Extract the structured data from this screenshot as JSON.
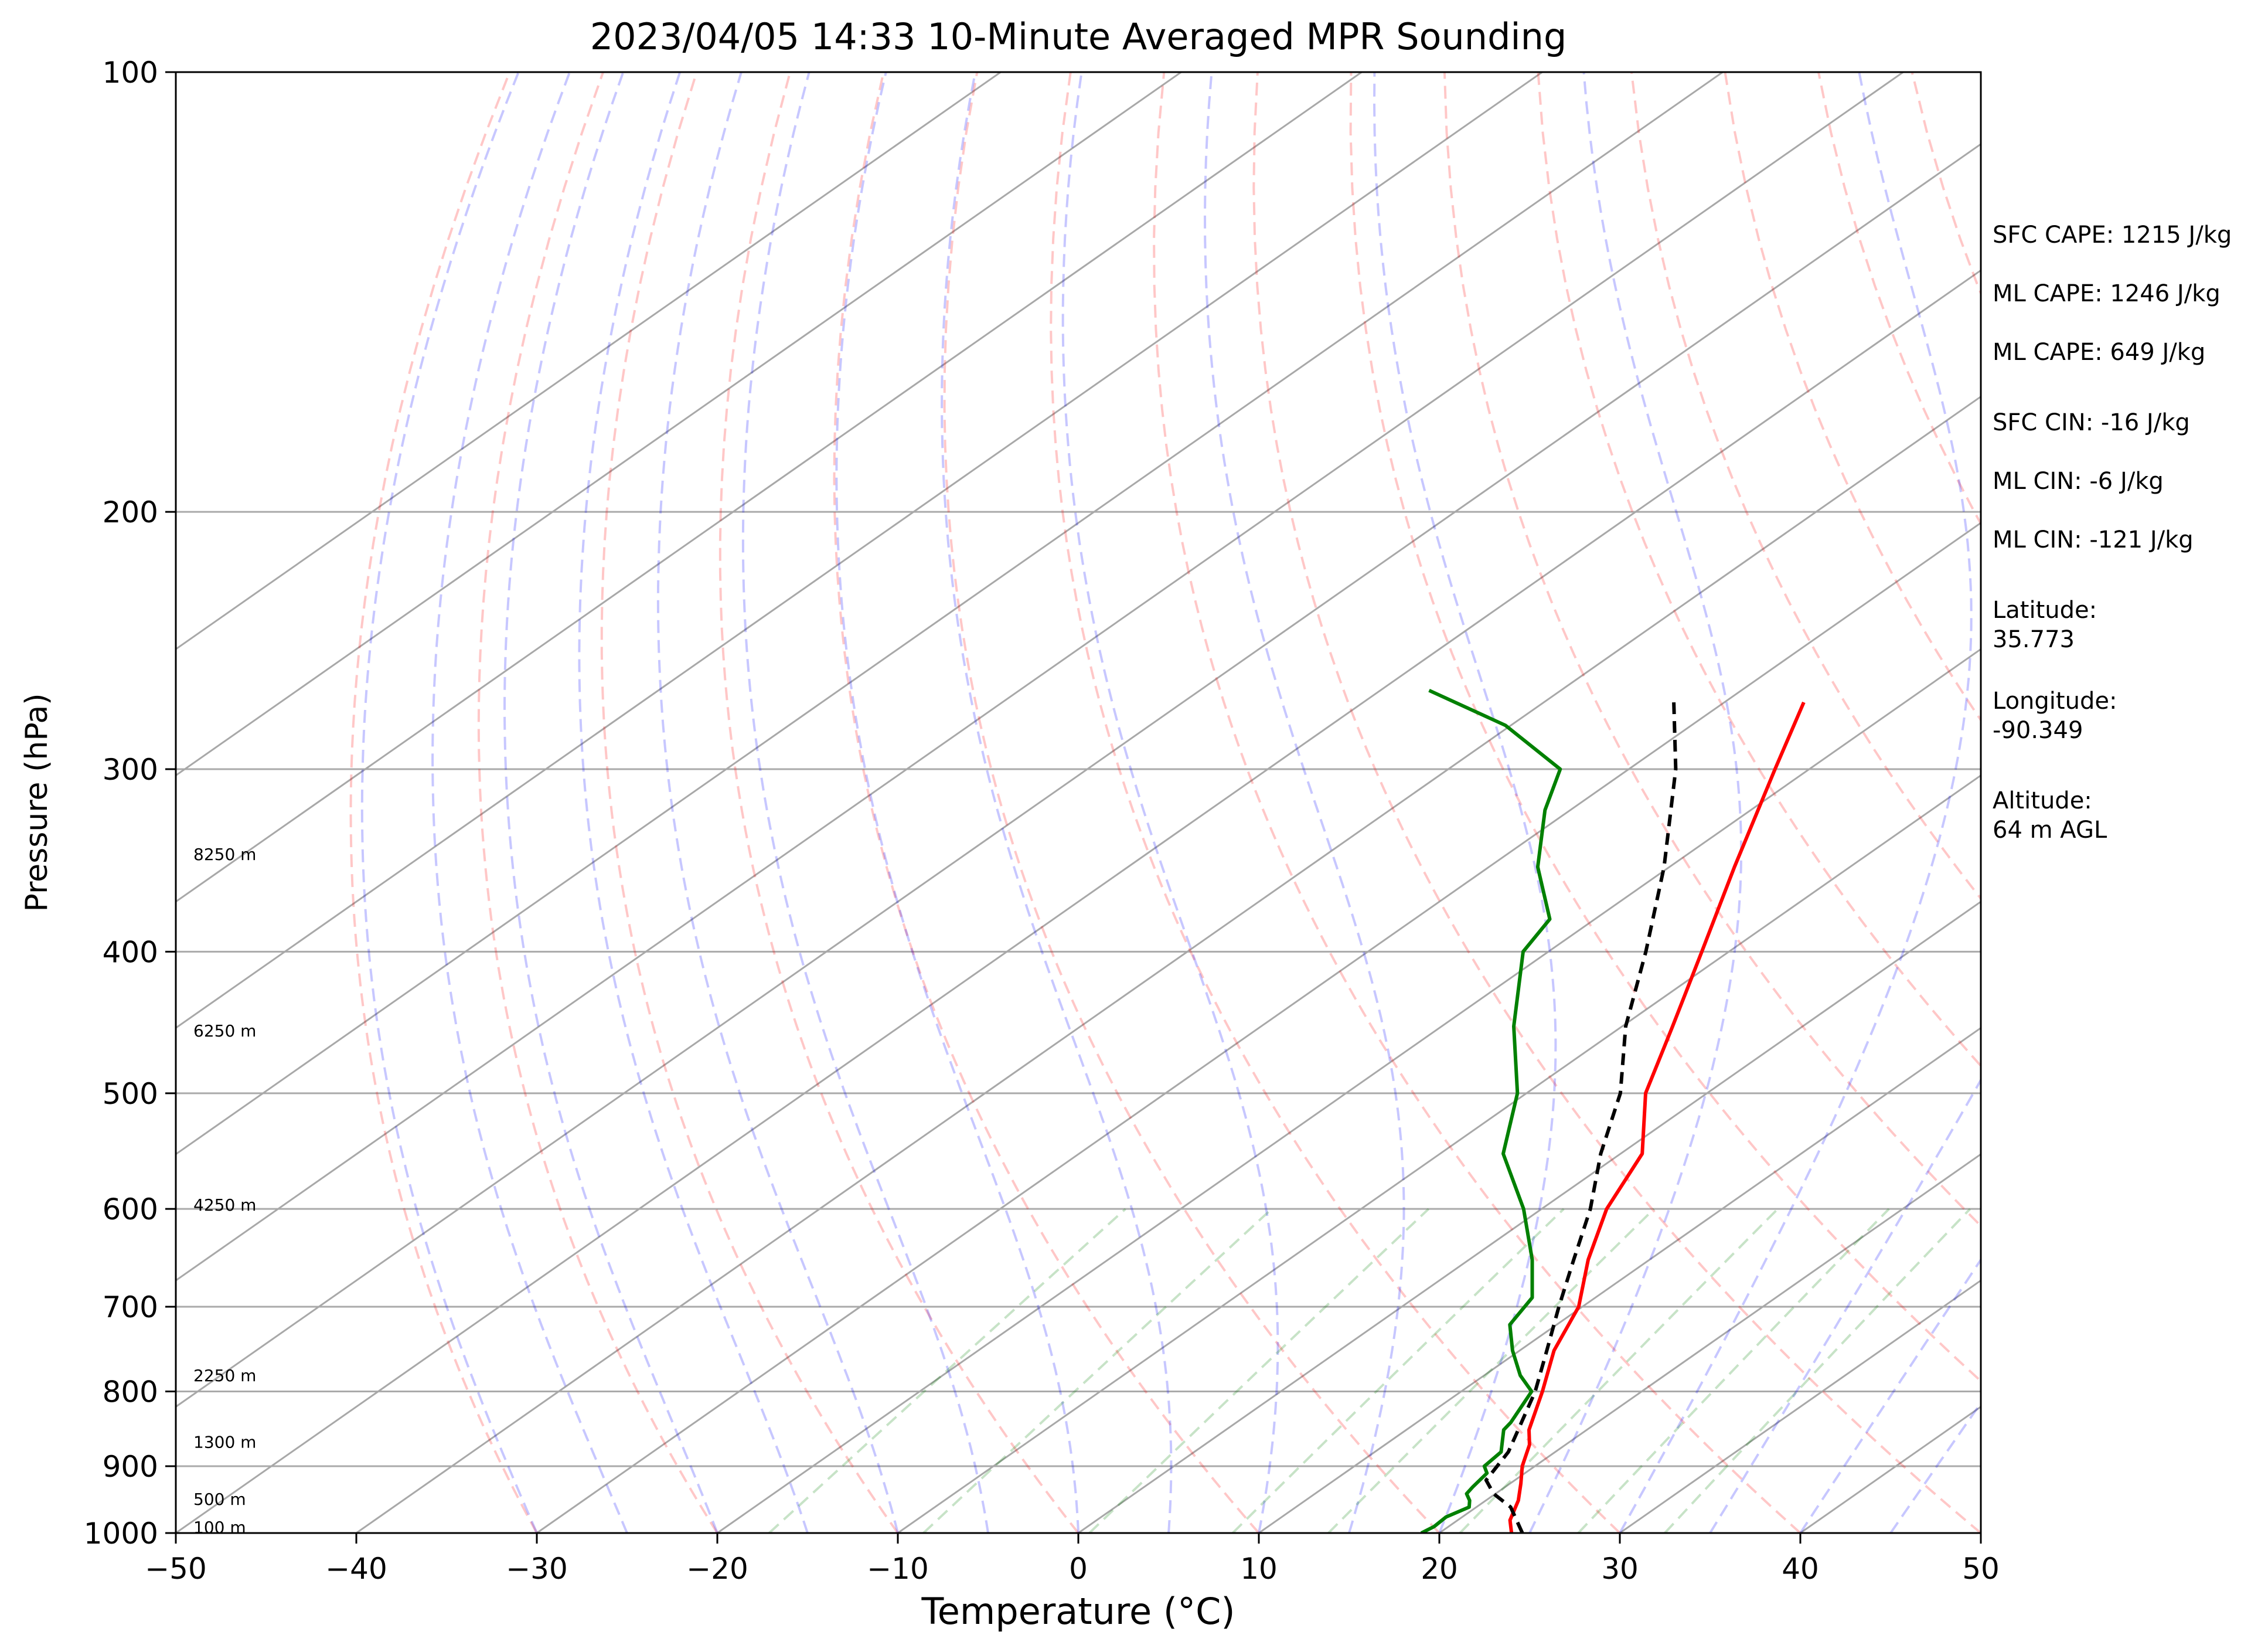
{
  "chart_data": {
    "type": "line",
    "title": "2023/04/05 14:33 10-Minute Averaged MPR Sounding",
    "xlabel": "Temperature (°C)",
    "ylabel": "Pressure (hPa)",
    "xlim": [
      -50,
      50
    ],
    "ylim": [
      1000,
      100
    ],
    "y_scale": "log",
    "skew": true,
    "grid": true,
    "x_ticks": [
      "−50",
      "−40",
      "−30",
      "−20",
      "−10",
      "0",
      "10",
      "20",
      "30",
      "40",
      "50"
    ],
    "y_ticks": [
      "100",
      "200",
      "300",
      "400",
      "500",
      "600",
      "700",
      "800",
      "900",
      "1000"
    ],
    "height_labels": [
      {
        "label": "8250 m",
        "p": 343
      },
      {
        "label": "6250 m",
        "p": 453
      },
      {
        "label": "4250 m",
        "p": 596
      },
      {
        "label": "2250 m",
        "p": 780
      },
      {
        "label": "1300 m",
        "p": 866
      },
      {
        "label": "500 m",
        "p": 948
      },
      {
        "label": "100 m",
        "p": 991
      }
    ],
    "annotations": [
      "SFC CAPE: 1215 J/kg",
      "ML CAPE: 1246 J/kg",
      "ML CAPE: 649 J/kg",
      "SFC CIN: -16 J/kg",
      "ML CIN: -6 J/kg",
      "ML CIN: -121 J/kg",
      "Latitude:\n35.773",
      "Longitude:\n-90.349",
      "Altitude:\n64 m AGL"
    ],
    "series": [
      {
        "role": "temperature",
        "color": "#ff0000",
        "points": [
          [
            1000,
            24.0
          ],
          [
            980,
            22.9
          ],
          [
            950,
            21.8
          ],
          [
            925,
            20.6
          ],
          [
            900,
            19.3
          ],
          [
            870,
            18.0
          ],
          [
            850,
            16.8
          ],
          [
            800,
            14.5
          ],
          [
            750,
            11.9
          ],
          [
            700,
            9.8
          ],
          [
            650,
            6.6
          ],
          [
            600,
            3.6
          ],
          [
            550,
            1.2
          ],
          [
            500,
            -3.4
          ],
          [
            450,
            -7.2
          ],
          [
            400,
            -11.5
          ],
          [
            350,
            -16.4
          ],
          [
            300,
            -21.9
          ],
          [
            270,
            -25.6
          ]
        ]
      },
      {
        "role": "dewpoint",
        "color": "#008000",
        "points": [
          [
            1000,
            19.0
          ],
          [
            990,
            19.2
          ],
          [
            975,
            19.1
          ],
          [
            960,
            19.6
          ],
          [
            950,
            19.1
          ],
          [
            940,
            18.4
          ],
          [
            930,
            18.2
          ],
          [
            910,
            17.9
          ],
          [
            900,
            17.2
          ],
          [
            880,
            17.0
          ],
          [
            850,
            15.4
          ],
          [
            840,
            15.2
          ],
          [
            800,
            13.9
          ],
          [
            780,
            12.0
          ],
          [
            750,
            9.6
          ],
          [
            720,
            7.4
          ],
          [
            690,
            6.5
          ],
          [
            650,
            3.5
          ],
          [
            600,
            -1.0
          ],
          [
            550,
            -6.5
          ],
          [
            500,
            -10.5
          ],
          [
            450,
            -16.0
          ],
          [
            400,
            -21.4
          ],
          [
            380,
            -22.5
          ],
          [
            350,
            -27.3
          ],
          [
            320,
            -31.4
          ],
          [
            300,
            -33.8
          ],
          [
            280,
            -40.3
          ],
          [
            265,
            -47.3
          ]
        ]
      },
      {
        "role": "parcel",
        "color": "#000000",
        "dashed": true,
        "points": [
          [
            1000,
            24.6
          ],
          [
            960,
            21.9
          ],
          [
            940,
            19.9
          ],
          [
            920,
            18.4
          ],
          [
            880,
            17.4
          ],
          [
            850,
            16.2
          ],
          [
            800,
            14.1
          ],
          [
            750,
            11.5
          ],
          [
            700,
            8.7
          ],
          [
            650,
            5.8
          ],
          [
            600,
            2.7
          ],
          [
            550,
            -1.1
          ],
          [
            500,
            -4.8
          ],
          [
            450,
            -9.8
          ],
          [
            400,
            -14.6
          ],
          [
            350,
            -20.3
          ],
          [
            300,
            -27.4
          ],
          [
            270,
            -32.8
          ]
        ]
      }
    ]
  }
}
